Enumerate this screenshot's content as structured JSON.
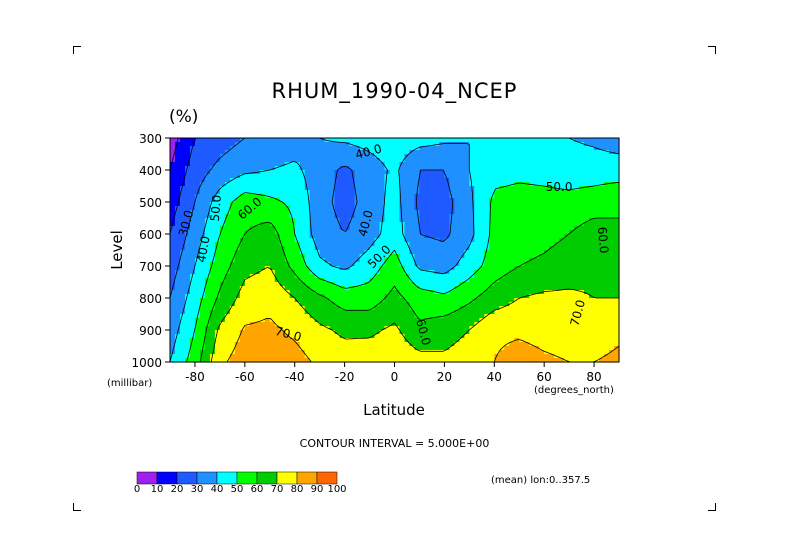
{
  "chart_data": {
    "type": "contour",
    "title": "RHUM_1990-04_NCEP",
    "units": "(%)",
    "xlabel": "Latitude",
    "xunit": "(degrees_north)",
    "ylabel": "Level",
    "yunit": "(millibar)",
    "xlim": [
      -90,
      90
    ],
    "ylim": [
      1000,
      300
    ],
    "x_ticks": [
      -80,
      -60,
      -40,
      -20,
      0,
      20,
      40,
      60,
      80
    ],
    "y_ticks": [
      300,
      400,
      500,
      600,
      700,
      800,
      900,
      1000
    ],
    "latitudes": [
      -90,
      -80,
      -70,
      -60,
      -50,
      -40,
      -30,
      -20,
      -10,
      0,
      10,
      20,
      30,
      40,
      50,
      60,
      70,
      80,
      90
    ],
    "levels": [
      300,
      400,
      500,
      600,
      700,
      800,
      900,
      1000
    ],
    "rhum": [
      [
        5,
        20,
        25,
        30,
        32,
        35,
        40,
        42,
        44,
        46,
        44,
        42,
        40,
        45,
        43,
        41,
        40,
        38,
        35
      ],
      [
        10,
        25,
        33,
        38,
        40,
        42,
        35,
        28,
        35,
        42,
        30,
        30,
        40,
        47,
        48,
        47,
        45,
        45,
        45
      ],
      [
        15,
        30,
        45,
        55,
        52,
        48,
        34,
        26,
        34,
        44,
        28,
        26,
        38,
        52,
        53,
        53,
        53,
        55,
        58
      ],
      [
        20,
        35,
        50,
        60,
        65,
        50,
        35,
        30,
        36,
        45,
        30,
        28,
        37,
        53,
        55,
        57,
        60,
        65,
        62
      ],
      [
        25,
        40,
        55,
        67,
        70,
        57,
        42,
        38,
        45,
        55,
        38,
        36,
        45,
        55,
        60,
        62,
        65,
        67,
        65
      ],
      [
        30,
        45,
        62,
        74,
        77,
        70,
        62,
        55,
        55,
        63,
        55,
        52,
        58,
        65,
        70,
        72,
        72,
        70,
        70
      ],
      [
        35,
        50,
        72,
        81,
        82,
        78,
        72,
        68,
        68,
        72,
        62,
        66,
        70,
        78,
        78,
        76,
        75,
        75,
        78
      ],
      [
        40,
        55,
        78,
        85,
        85,
        84,
        78,
        75,
        76,
        78,
        74,
        72,
        75,
        80,
        85,
        82,
        80,
        80,
        82
      ]
    ],
    "contour_interval_label": "CONTOUR INTERVAL = 5.000E+00",
    "contour_labels": [
      "30.0",
      "40.0",
      "50.0",
      "60.0",
      "70.0",
      "40.0",
      "40.0",
      "50.0",
      "60.0",
      "50.0",
      "60.0",
      "70.0"
    ],
    "legend": {
      "labels": [
        "0",
        "10",
        "20",
        "30",
        "40",
        "50",
        "60",
        "70",
        "80",
        "90",
        "100"
      ],
      "colors": [
        "#a020f0",
        "#0000ff",
        "#1e5aff",
        "#1e90ff",
        "#00ffff",
        "#00ff00",
        "#00cd00",
        "#ffff00",
        "#ffa500",
        "#ff6600",
        "#ff0000"
      ]
    },
    "note": "(mean) lon:0..357.5"
  }
}
